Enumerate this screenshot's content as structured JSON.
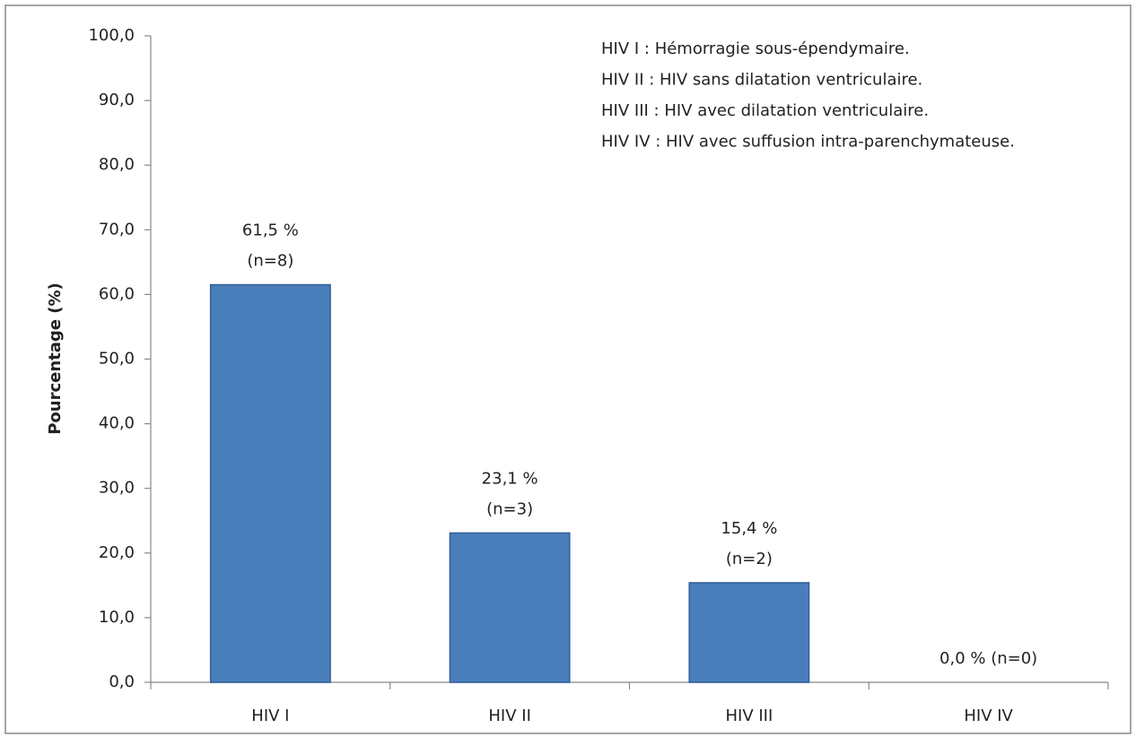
{
  "chart_data": {
    "type": "bar",
    "y_label": "Pourcentage (%)",
    "annotations": [
      "HIV I : Hémorragie sous-épendymaire.",
      "HIV II : HIV sans dilatation ventriculaire.",
      "HIV III : HIV avec dilatation ventriculaire.",
      "HIV IV : HIV avec suffusion intra-parenchymateuse."
    ],
    "categories": [
      "HIV I",
      "HIV II",
      "HIV III",
      "HIV IV"
    ],
    "values": [
      61.5,
      23.1,
      15.4,
      0.0
    ],
    "value_labels": [
      [
        "61,5 %",
        "(n=8)"
      ],
      [
        "23,1 %",
        "(n=3)"
      ],
      [
        "15,4 %",
        "(n=2)"
      ],
      [
        "0,0 % (n=0)"
      ]
    ],
    "color": "#4a7ebb",
    "ylim": [
      0,
      100
    ],
    "yticks": [
      {
        "value": 0,
        "label": "0,0"
      },
      {
        "value": 10,
        "label": "10,0"
      },
      {
        "value": 20,
        "label": "20,0"
      },
      {
        "value": 30,
        "label": "30,0"
      },
      {
        "value": 40,
        "label": "40,0"
      },
      {
        "value": 50,
        "label": "50,0"
      },
      {
        "value": 60,
        "label": "60,0"
      },
      {
        "value": 70,
        "label": "70,0"
      },
      {
        "value": 80,
        "label": "80,0"
      },
      {
        "value": 90,
        "label": "90,0"
      },
      {
        "value": 100,
        "label": "100,0"
      }
    ],
    "grid": false
  }
}
